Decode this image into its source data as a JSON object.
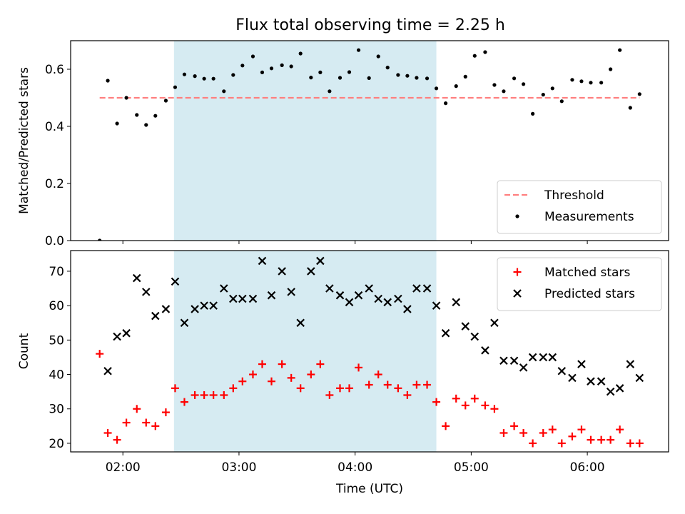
{
  "title": "Flux total observing time = 2.25 h",
  "colors": {
    "band": "#add8e6",
    "threshold": "#ff7f7f",
    "measurements": "#000000",
    "matched": "#ff0000",
    "predicted": "#000000"
  },
  "chart_data": [
    {
      "type": "scatter",
      "ylabel": "Matched/Predicted stars",
      "xlabel": "",
      "x_unit": "hours UTC",
      "xlim": [
        1.55,
        6.7
      ],
      "ylim": [
        0.0,
        0.7
      ],
      "yticks": [
        0.0,
        0.2,
        0.4,
        0.6
      ],
      "yticklabels": [
        "0.0",
        "0.2",
        "0.4",
        "0.6"
      ],
      "xticks": [
        2,
        3,
        4,
        5,
        6
      ],
      "xticklabels": [
        "",
        "",
        "",
        "",
        ""
      ],
      "shaded_band": [
        2.44,
        4.7
      ],
      "threshold": {
        "name": "Threshold",
        "value": 0.5,
        "x_range": [
          1.8,
          6.45
        ],
        "style": "dashed"
      },
      "legend_position": "lower right",
      "series": [
        {
          "name": "Measurements",
          "marker": "dot",
          "x": [
            1.8,
            1.87,
            1.95,
            2.03,
            2.12,
            2.2,
            2.28,
            2.37,
            2.45,
            2.53,
            2.62,
            2.7,
            2.78,
            2.87,
            2.95,
            3.03,
            3.12,
            3.2,
            3.28,
            3.37,
            3.45,
            3.53,
            3.62,
            3.7,
            3.78,
            3.87,
            3.95,
            4.03,
            4.12,
            4.2,
            4.28,
            4.37,
            4.45,
            4.53,
            4.62,
            4.7,
            4.78,
            4.87,
            4.95,
            5.03,
            5.12,
            5.2,
            5.28,
            5.37,
            5.45,
            5.53,
            5.62,
            5.7,
            5.78,
            5.87,
            5.95,
            6.03,
            6.12,
            6.2,
            6.28,
            6.37,
            6.45
          ],
          "y": [
            0.0,
            0.56,
            0.41,
            0.5,
            0.44,
            0.405,
            0.437,
            0.49,
            0.537,
            0.582,
            0.576,
            0.567,
            0.567,
            0.523,
            0.58,
            0.613,
            0.645,
            0.589,
            0.603,
            0.614,
            0.61,
            0.655,
            0.571,
            0.589,
            0.523,
            0.57,
            0.59,
            0.667,
            0.569,
            0.645,
            0.606,
            0.58,
            0.577,
            0.57,
            0.568,
            0.533,
            0.481,
            0.541,
            0.574,
            0.647,
            0.66,
            0.545,
            0.523,
            0.568,
            0.548,
            0.444,
            0.511,
            0.533,
            0.488,
            0.563,
            0.558,
            0.553,
            0.553,
            0.6,
            0.667,
            0.465,
            0.513
          ]
        }
      ]
    },
    {
      "type": "scatter",
      "ylabel": "Count",
      "xlabel": "Time (UTC)",
      "x_unit": "hours UTC",
      "xlim": [
        1.55,
        6.7
      ],
      "ylim": [
        17.5,
        76
      ],
      "yticks": [
        20,
        30,
        40,
        50,
        60,
        70
      ],
      "yticklabels": [
        "20",
        "30",
        "40",
        "50",
        "60",
        "70"
      ],
      "xticks": [
        2,
        3,
        4,
        5,
        6
      ],
      "xticklabels": [
        "02:00",
        "03:00",
        "04:00",
        "05:00",
        "06:00"
      ],
      "shaded_band": [
        2.44,
        4.7
      ],
      "legend_position": "upper right",
      "series": [
        {
          "name": "Matched stars",
          "marker": "plus",
          "x": [
            1.8,
            1.87,
            1.95,
            2.03,
            2.12,
            2.2,
            2.28,
            2.37,
            2.45,
            2.53,
            2.62,
            2.7,
            2.78,
            2.87,
            2.95,
            3.03,
            3.12,
            3.2,
            3.28,
            3.37,
            3.45,
            3.53,
            3.62,
            3.7,
            3.78,
            3.87,
            3.95,
            4.03,
            4.12,
            4.2,
            4.28,
            4.37,
            4.45,
            4.53,
            4.62,
            4.7,
            4.78,
            4.87,
            4.95,
            5.03,
            5.12,
            5.2,
            5.28,
            5.37,
            5.45,
            5.53,
            5.62,
            5.7,
            5.78,
            5.87,
            5.95,
            6.03,
            6.12,
            6.2,
            6.28,
            6.37,
            6.45
          ],
          "y": [
            46,
            23,
            21,
            26,
            30,
            26,
            25,
            29,
            36,
            32,
            34,
            34,
            34,
            34,
            36,
            38,
            40,
            43,
            38,
            43,
            39,
            36,
            40,
            43,
            34,
            36,
            36,
            42,
            37,
            40,
            37,
            36,
            34,
            37,
            37,
            32,
            25,
            33,
            31,
            33,
            31,
            30,
            23,
            25,
            23,
            20,
            23,
            24,
            20,
            22,
            24,
            21,
            21,
            21,
            24,
            20,
            20
          ]
        },
        {
          "name": "Predicted stars",
          "marker": "x",
          "x": [
            1.87,
            1.95,
            2.03,
            2.12,
            2.2,
            2.28,
            2.37,
            2.45,
            2.53,
            2.62,
            2.7,
            2.78,
            2.87,
            2.95,
            3.03,
            3.12,
            3.2,
            3.28,
            3.37,
            3.45,
            3.53,
            3.62,
            3.7,
            3.78,
            3.87,
            3.95,
            4.03,
            4.12,
            4.2,
            4.28,
            4.37,
            4.45,
            4.53,
            4.62,
            4.7,
            4.78,
            4.87,
            4.95,
            5.03,
            5.12,
            5.2,
            5.28,
            5.37,
            5.45,
            5.53,
            5.62,
            5.7,
            5.78,
            5.87,
            5.95,
            6.03,
            6.12,
            6.2,
            6.28,
            6.37,
            6.45
          ],
          "y": [
            41,
            51,
            52,
            68,
            64,
            57,
            59,
            67,
            55,
            59,
            60,
            60,
            65,
            62,
            62,
            62,
            73,
            63,
            70,
            64,
            55,
            70,
            73,
            65,
            63,
            61,
            63,
            65,
            62,
            61,
            62,
            59,
            65,
            65,
            60,
            52,
            61,
            54,
            51,
            47,
            55,
            44,
            44,
            42,
            45,
            45,
            45,
            41,
            39,
            43,
            38,
            38,
            35,
            36,
            43,
            39
          ]
        }
      ]
    }
  ]
}
